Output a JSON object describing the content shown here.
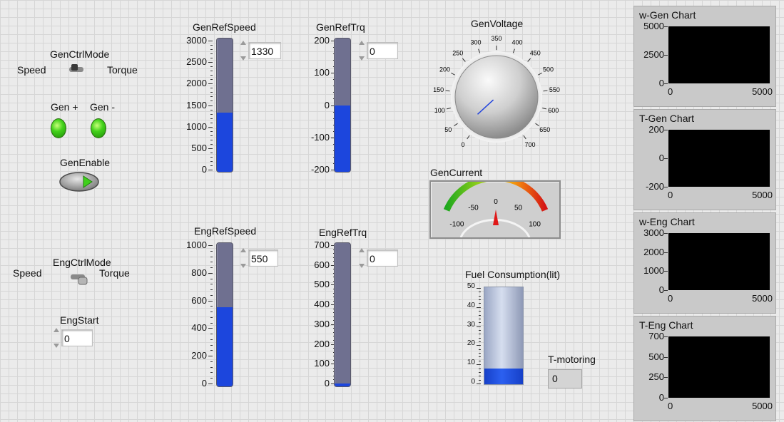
{
  "gen_ctrl_mode": {
    "title": "GenCtrlMode",
    "left_label": "Speed",
    "right_label": "Torque"
  },
  "gen_leds": {
    "plus_label": "Gen +",
    "minus_label": "Gen -",
    "color": "#3fd11b"
  },
  "gen_enable": {
    "label": "GenEnable"
  },
  "eng_ctrl_mode": {
    "title": "EngCtrlMode",
    "left_label": "Speed",
    "right_label": "Torque"
  },
  "eng_start": {
    "label": "EngStart",
    "value": "0"
  },
  "gen_ref_speed": {
    "title": "GenRefSpeed",
    "ticks": [
      "3000",
      "2500",
      "2000",
      "1500",
      "1000",
      "500",
      "0"
    ],
    "value": "1330",
    "min": 0,
    "max": 3000,
    "level": 1330
  },
  "gen_ref_trq": {
    "title": "GenRefTrq",
    "ticks": [
      "200",
      "100",
      "0",
      "-100",
      "-200"
    ],
    "value": "0",
    "min": -200,
    "max": 200,
    "level": 0
  },
  "eng_ref_speed": {
    "title": "EngRefSpeed",
    "ticks": [
      "1000",
      "800",
      "600",
      "400",
      "200",
      "0"
    ],
    "value": "550",
    "min": 0,
    "max": 1000,
    "level": 550
  },
  "eng_ref_trq": {
    "title": "EngRefTrq",
    "ticks": [
      "700",
      "600",
      "500",
      "400",
      "300",
      "200",
      "100",
      "0"
    ],
    "value": "0",
    "min": 0,
    "max": 700,
    "level": 0
  },
  "gen_voltage": {
    "title": "GenVoltage",
    "ticks": [
      "0",
      "50",
      "100",
      "150",
      "200",
      "250",
      "300",
      "350",
      "400",
      "450",
      "500",
      "550",
      "600",
      "650",
      "700"
    ],
    "value": 30
  },
  "gen_current": {
    "title": "GenCurrent",
    "ticks": [
      "-100",
      "-50",
      "0",
      "50",
      "100"
    ],
    "value": 0
  },
  "fuel": {
    "title": "Fuel Consumption(lit)",
    "ticks": [
      "50",
      "40",
      "30",
      "20",
      "10",
      "0"
    ],
    "level": 8,
    "max": 50
  },
  "t_motoring": {
    "label": "T-motoring",
    "value": "0"
  },
  "charts": [
    {
      "title": "w-Gen Chart",
      "y_ticks": [
        "5000",
        "2500",
        "0"
      ],
      "x_min": "0",
      "x_max": "5000"
    },
    {
      "title": "T-Gen Chart",
      "y_ticks": [
        "200",
        "0",
        "-200"
      ],
      "x_min": "0",
      "x_max": "5000"
    },
    {
      "title": "w-Eng Chart",
      "y_ticks": [
        "3000",
        "2000",
        "1000",
        "0"
      ],
      "x_min": "0",
      "x_max": "5000"
    },
    {
      "title": "T-Eng Chart",
      "y_ticks": [
        "700",
        "500",
        "250",
        "0"
      ],
      "x_min": "0",
      "x_max": "5000"
    }
  ],
  "colors": {
    "slider_fill": "#1c46dd",
    "slider_track": "#6f7090",
    "plot_bg": "#000000",
    "needle": "#2244dd"
  }
}
